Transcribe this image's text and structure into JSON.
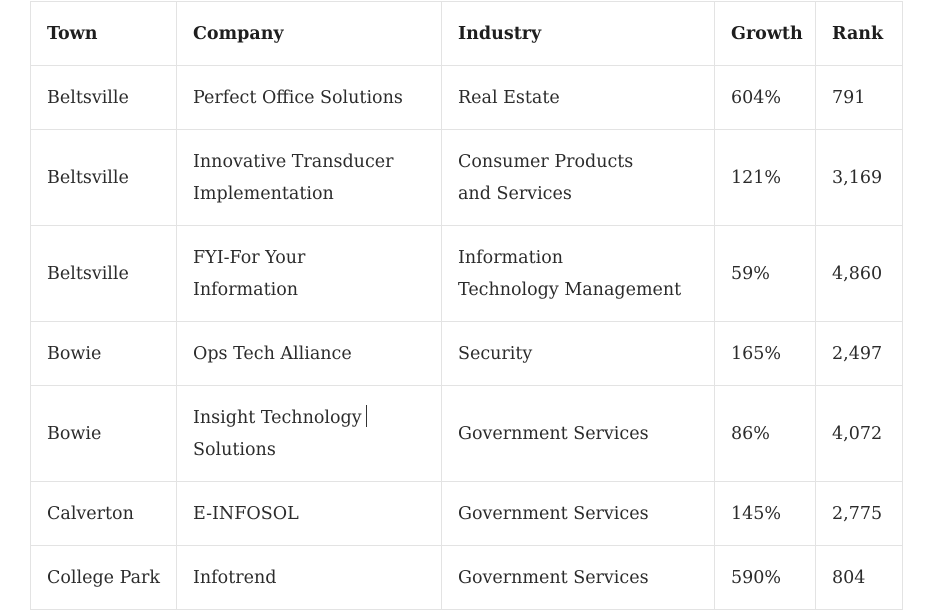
{
  "table": {
    "headers": [
      "Town",
      "Company",
      "Industry",
      "Growth",
      "Rank"
    ],
    "rows": [
      {
        "town": "Beltsville",
        "company": "Perfect Office Solutions",
        "industry": "Real Estate",
        "growth": "604%",
        "rank": "791"
      },
      {
        "town": "Beltsville",
        "company_line1": "Innovative Transducer",
        "company_line2": "Implementation",
        "industry_line1": "Consumer Products",
        "industry_line2": "and Services",
        "growth": "121%",
        "rank": "3,169"
      },
      {
        "town": "Beltsville",
        "company_line1": "FYI-For Your",
        "company_line2": "Information",
        "industry_line1": "Information",
        "industry_line2": "Technology Management",
        "growth": "59%",
        "rank": "4,860"
      },
      {
        "town": "Bowie",
        "company": "Ops Tech Alliance",
        "industry": "Security",
        "growth": "165%",
        "rank": "2,497"
      },
      {
        "town": "Bowie",
        "company_line1": "Insight Technology",
        "company_line2": "Solutions",
        "industry": "Government Services",
        "growth": "86%",
        "rank": "4,072"
      },
      {
        "town": "Calverton",
        "company": "E-INFOSOL",
        "industry": "Government Services",
        "growth": "145%",
        "rank": "2,775"
      },
      {
        "town": "College Park",
        "company": "Infotrend",
        "industry": "Government Services",
        "growth": "590%",
        "rank": "804"
      }
    ]
  }
}
